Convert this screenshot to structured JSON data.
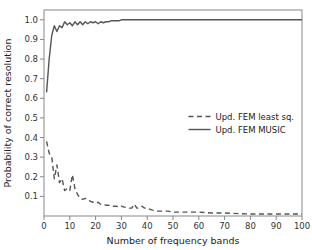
{
  "chart_data": {
    "type": "line",
    "xlabel": "Number of frequency bands",
    "ylabel": "Probability of correct resolution",
    "xlim": [
      0,
      100
    ],
    "ylim": [
      0.0,
      1.05
    ],
    "xticks": [
      0,
      10,
      20,
      30,
      40,
      50,
      60,
      70,
      80,
      90,
      100
    ],
    "yticks": [
      0.1,
      0.2,
      0.3,
      0.4,
      0.5,
      0.6,
      0.7,
      0.8,
      0.9,
      {
        "value": 1,
        "label": "1.0"
      }
    ],
    "grid": false,
    "legend": "center right",
    "series": [
      {
        "name": "Upd. FEM least sq.",
        "color": "#555555",
        "line_style": "dashed",
        "x": [
          1,
          2,
          3,
          4,
          5,
          6,
          7,
          8,
          9,
          10,
          11,
          12,
          13,
          14,
          15,
          16,
          17,
          18,
          19,
          20,
          21,
          22,
          23,
          24,
          25,
          26,
          27,
          28,
          29,
          30,
          31,
          32,
          33,
          34,
          35,
          36,
          37,
          38,
          39,
          40,
          42,
          44,
          46,
          48,
          50,
          55,
          60,
          65,
          70,
          80,
          90,
          100
        ],
        "values": [
          0.38,
          0.32,
          0.3,
          0.19,
          0.26,
          0.17,
          0.19,
          0.13,
          0.14,
          0.13,
          0.21,
          0.14,
          0.11,
          0.09,
          0.085,
          0.09,
          0.085,
          0.075,
          0.07,
          0.065,
          0.07,
          0.06,
          0.06,
          0.055,
          0.055,
          0.05,
          0.05,
          0.05,
          0.045,
          0.05,
          0.045,
          0.045,
          0.04,
          0.04,
          0.06,
          0.04,
          0.04,
          0.05,
          0.04,
          0.04,
          0.03,
          0.025,
          0.025,
          0.025,
          0.02,
          0.02,
          0.02,
          0.015,
          0.015,
          0.01,
          0.01,
          0.01
        ]
      },
      {
        "name": "Upd. FEM MUSIC",
        "color": "#555555",
        "line_style": "solid",
        "x": [
          1,
          2,
          3,
          4,
          5,
          6,
          7,
          8,
          9,
          10,
          11,
          12,
          13,
          14,
          15,
          16,
          17,
          18,
          19,
          20,
          21,
          22,
          23,
          24,
          25,
          26,
          27,
          28,
          29,
          30,
          35,
          40,
          50,
          60,
          70,
          80,
          90,
          100
        ],
        "values": [
          0.63,
          0.8,
          0.92,
          0.97,
          0.94,
          0.97,
          0.96,
          0.99,
          0.975,
          0.985,
          0.97,
          0.99,
          0.975,
          0.99,
          0.975,
          0.99,
          0.98,
          0.99,
          0.985,
          0.99,
          0.98,
          0.99,
          0.985,
          0.99,
          0.99,
          0.995,
          0.995,
          0.995,
          0.995,
          1.0,
          1.0,
          1.0,
          1.0,
          1.0,
          1.0,
          1.0,
          1.0,
          1.0
        ]
      }
    ]
  }
}
